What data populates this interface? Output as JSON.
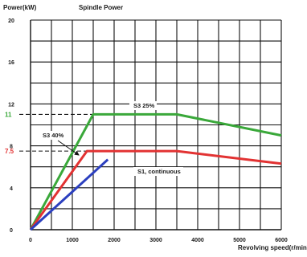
{
  "chart_data": {
    "type": "line",
    "title": "Spindle Power",
    "ylabel": "Power(kW)",
    "xlabel": "Revolving speed(r/min)",
    "xlim": [
      0,
      6000
    ],
    "ylim": [
      0,
      20
    ],
    "x_ticks": [
      0,
      1000,
      2000,
      3000,
      4000,
      5000,
      6000
    ],
    "y_ticks": [
      0,
      4,
      8,
      12,
      16,
      20
    ],
    "x_tick_labels": [
      "0",
      "1000",
      "2000",
      "3000",
      "4000",
      "5000",
      "6000"
    ],
    "y_tick_labels": [
      "0",
      "4",
      "8",
      "12",
      "16",
      "20"
    ],
    "grid": true,
    "series": [
      {
        "name": "S3 25%",
        "color": "#3aa83a",
        "x": [
          0,
          1500,
          3500,
          6000
        ],
        "y": [
          0,
          11,
          11,
          9
        ]
      },
      {
        "name": "S3 40%",
        "color": "#e23232",
        "x": [
          0,
          1350,
          1900,
          3500,
          6000
        ],
        "y": [
          0,
          7.5,
          7.5,
          7.5,
          6.3
        ]
      },
      {
        "name": "S1, continuous",
        "color": "#2b3fbf",
        "x": [
          0,
          1850
        ],
        "y": [
          0,
          6.7
        ]
      }
    ],
    "reference_lines": [
      {
        "label": "11",
        "y": 11,
        "x_end": 1500,
        "color": "#3aa83a"
      },
      {
        "label": "7.5",
        "y": 7.5,
        "x_end": 1350,
        "color": "#e23232"
      }
    ]
  }
}
